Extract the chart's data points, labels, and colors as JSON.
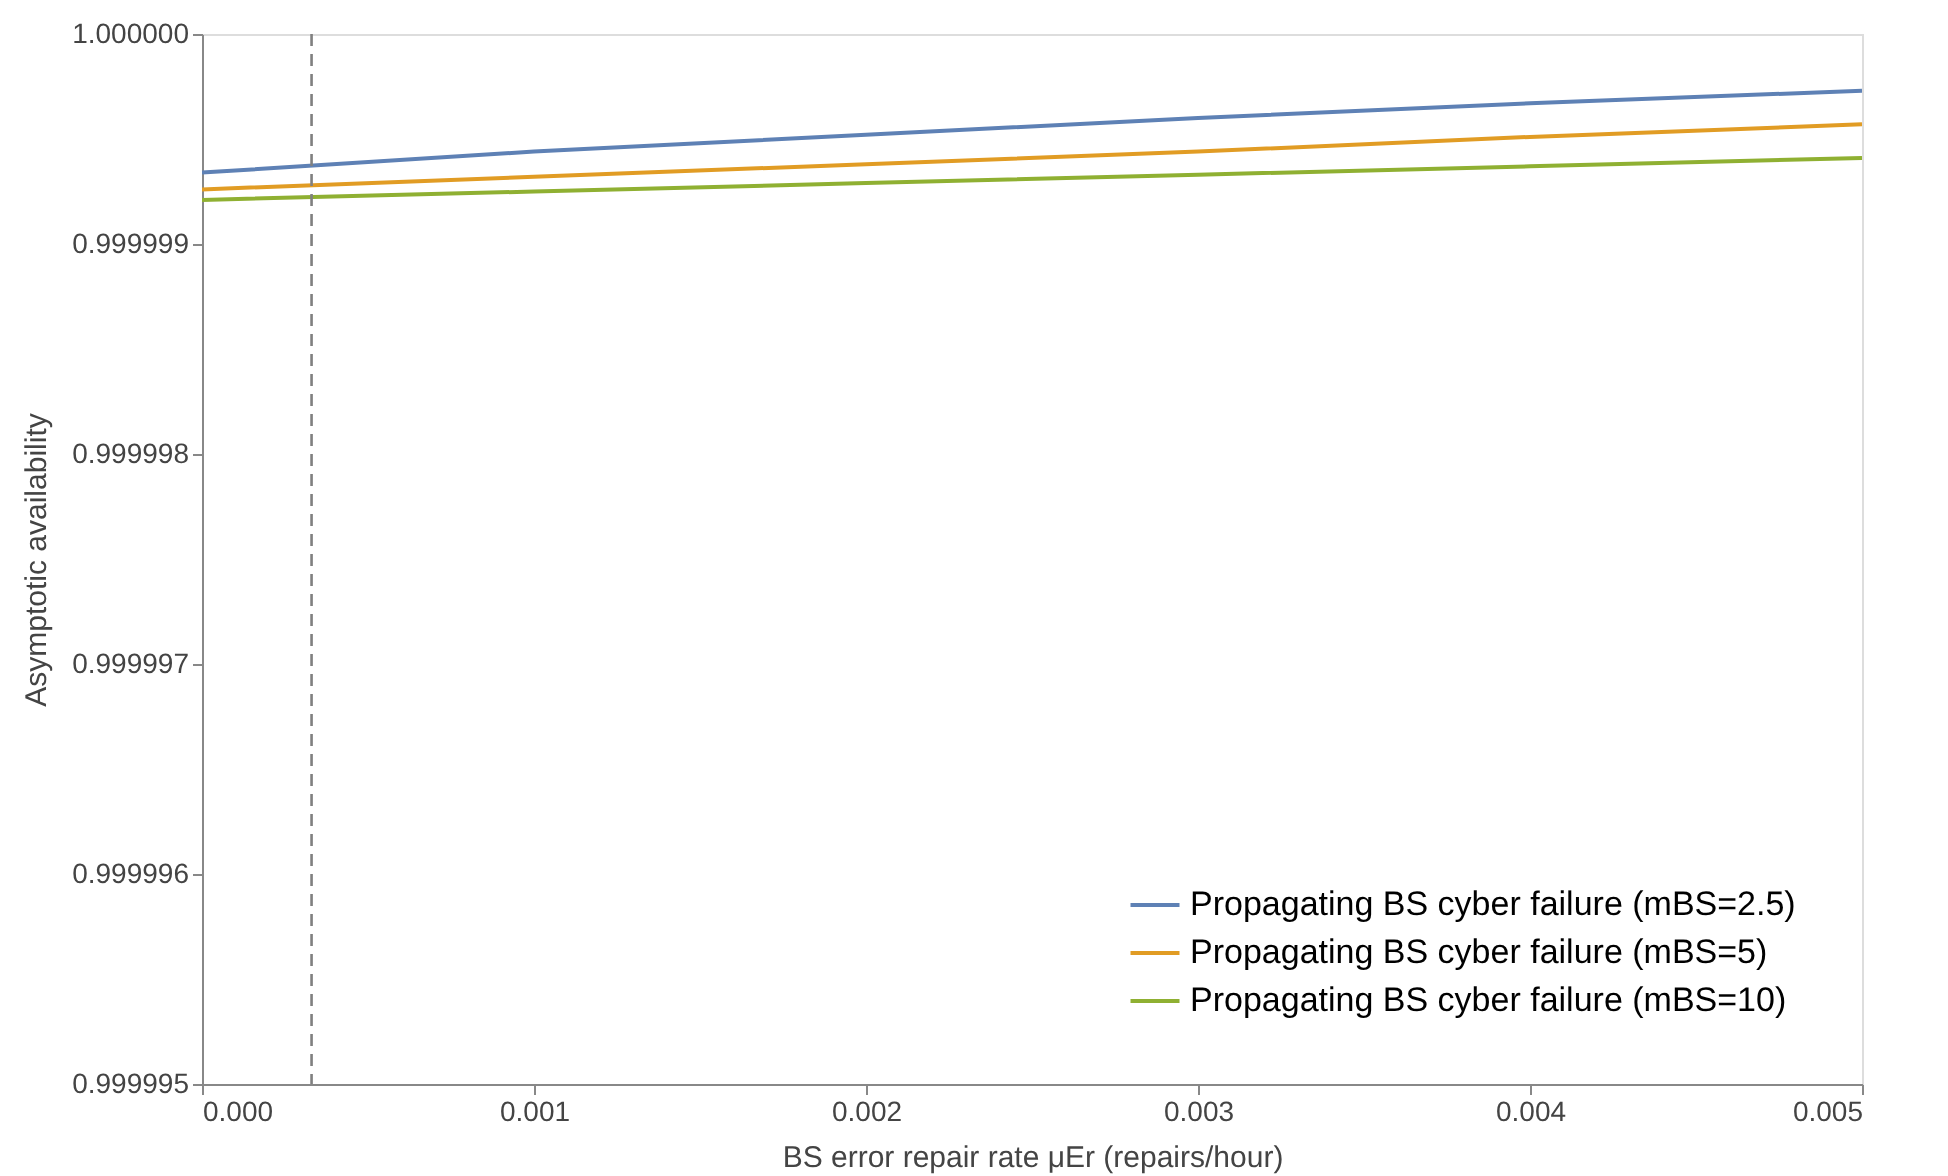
{
  "chart_data": {
    "type": "line",
    "xlabel": "BS error repair rate μEr (repairs/hour)",
    "ylabel": "Asymptotic availability",
    "x": [
      0,
      0.001,
      0.002,
      0.003,
      0.004,
      0.005
    ],
    "series": [
      {
        "name": "Propagating BS cyber failure (mBS=2.5)",
        "color": "#5e81b5",
        "values": [
          0.99999934,
          0.99999944,
          0.99999952,
          0.9999996,
          0.99999967,
          0.99999973
        ]
      },
      {
        "name": "Propagating BS cyber failure (mBS=5)",
        "color": "#e19c24",
        "values": [
          0.99999926,
          0.99999932,
          0.99999938,
          0.99999944,
          0.99999951,
          0.99999957
        ]
      },
      {
        "name": "Propagating BS cyber failure (mBS=10)",
        "color": "#8fb032",
        "values": [
          0.99999921,
          0.99999925,
          0.99999929,
          0.99999933,
          0.99999937,
          0.99999941
        ]
      }
    ],
    "xlim": [
      0,
      0.005
    ],
    "xticks": [
      {
        "value": 0,
        "label": "0.000"
      },
      {
        "value": 0.001,
        "label": "0.001"
      },
      {
        "value": 0.002,
        "label": "0.002"
      },
      {
        "value": 0.003,
        "label": "0.003"
      },
      {
        "value": 0.004,
        "label": "0.004"
      },
      {
        "value": 0.005,
        "label": "0.005"
      }
    ],
    "ylim": [
      0.999995,
      1.0
    ],
    "yticks": [
      0.999995,
      0.999996,
      0.999997,
      0.999998,
      0.999999,
      {
        "value": 1.0,
        "label": "1.000000"
      }
    ],
    "ref_lines": [
      {
        "axis": "x",
        "value": 0.00033,
        "color": "#808080",
        "line_style": "dashed"
      }
    ],
    "legend": "bottom right",
    "grid": false,
    "marker": "none",
    "line_style": "solid"
  }
}
